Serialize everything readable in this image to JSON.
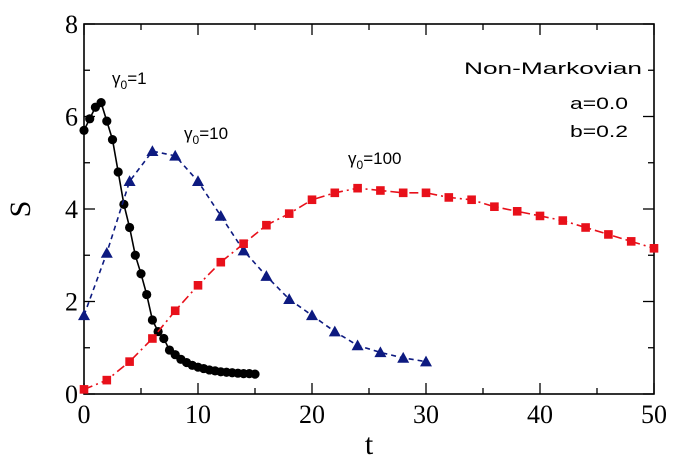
{
  "chart_data": {
    "type": "line",
    "xlabel": "t",
    "ylabel": "S",
    "xlim": [
      0,
      50
    ],
    "ylim": [
      0,
      8
    ],
    "x_ticks": [
      "0",
      "10",
      "20",
      "30",
      "40",
      "50"
    ],
    "y_ticks": [
      "0",
      "2",
      "4",
      "6",
      "8"
    ],
    "grid": false,
    "annotations": [
      "Non-Markovian",
      "a=0.0",
      "b=0.2"
    ],
    "series": [
      {
        "name": "γ0=1",
        "label_sub": "0",
        "label_tail": "=1",
        "color": "#000000",
        "marker": "circle",
        "line_style": "solid",
        "x": [
          0,
          0.5,
          1,
          1.5,
          2,
          2.5,
          3,
          3.5,
          4,
          4.5,
          5,
          5.5,
          6,
          6.5,
          7,
          7.5,
          8,
          8.5,
          9,
          9.5,
          10,
          10.5,
          11,
          11.5,
          12,
          12.5,
          13,
          13.5,
          14,
          14.5,
          15
        ],
        "y": [
          5.7,
          5.95,
          6.2,
          6.3,
          5.9,
          5.5,
          4.8,
          4.1,
          3.6,
          3.0,
          2.6,
          2.15,
          1.6,
          1.35,
          1.2,
          0.95,
          0.85,
          0.75,
          0.68,
          0.62,
          0.58,
          0.55,
          0.52,
          0.5,
          0.48,
          0.47,
          0.46,
          0.45,
          0.44,
          0.44,
          0.43
        ]
      },
      {
        "name": "γ0=10",
        "label_sub": "0",
        "label_tail": "=10",
        "color": "#0d1a80",
        "marker": "triangle",
        "line_style": "dashed",
        "x": [
          0,
          2,
          4,
          6,
          8,
          10,
          12,
          14,
          16,
          18,
          20,
          22,
          24,
          26,
          28,
          30
        ],
        "y": [
          1.7,
          3.05,
          4.6,
          5.25,
          5.15,
          4.6,
          3.85,
          3.1,
          2.55,
          2.05,
          1.7,
          1.35,
          1.05,
          0.9,
          0.78,
          0.7
        ]
      },
      {
        "name": "γ0=100",
        "label_sub": "0",
        "label_tail": "=100",
        "color": "#e8101a",
        "marker": "square",
        "line_style": "dashdot",
        "x": [
          0,
          2,
          4,
          6,
          8,
          10,
          12,
          14,
          16,
          18,
          20,
          22,
          24,
          26,
          28,
          30,
          32,
          34,
          36,
          38,
          40,
          42,
          44,
          46,
          48,
          50
        ],
        "y": [
          0.1,
          0.3,
          0.7,
          1.2,
          1.8,
          2.35,
          2.85,
          3.25,
          3.65,
          3.9,
          4.2,
          4.35,
          4.45,
          4.4,
          4.35,
          4.35,
          4.25,
          4.2,
          4.05,
          3.95,
          3.85,
          3.75,
          3.6,
          3.45,
          3.3,
          3.15
        ]
      }
    ]
  }
}
